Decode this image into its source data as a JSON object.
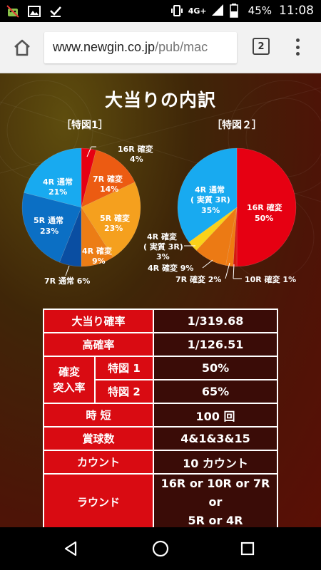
{
  "status": {
    "network": "4G+",
    "battery": "45%",
    "time": "11:08"
  },
  "browser": {
    "url_domain": "www.newgin.co.jp",
    "url_path": "/pub/mac",
    "tab_count": "2"
  },
  "page": {
    "title": "大当りの内訳",
    "left_heading": "［特図1］",
    "right_heading": "［特図２］"
  },
  "charts": {
    "left_labels": {
      "r16_name": "16R 確変",
      "r16_pct": "4%",
      "r7k_name": "7R 確変",
      "r7k_pct": "14%",
      "r5k_name": "5R 確変",
      "r5k_pct": "23%",
      "r4k_name": "4R 確変",
      "r4k_pct": "9%",
      "r7t": "7R 通常 6%",
      "r5t_name": "5R 通常",
      "r5t_pct": "23%",
      "r4t_name": "4R 通常",
      "r4t_pct": "21%"
    },
    "right_labels": {
      "r16_name": "16R 確変",
      "r16_pct": "50%",
      "r10": "10R 確変 1%",
      "r7": "7R 確変 2%",
      "r4k": "4R 確変 9%",
      "r4j_l1": "4R 確変",
      "r4j_l2": "( 実質 3R)",
      "r4j_l3": "3%",
      "r4t_l1": "4R 通常",
      "r4t_l2": "( 実質 3R)",
      "r4t_l3": "35%"
    }
  },
  "chart_data": [
    {
      "type": "pie",
      "title": "［特図1］",
      "labels": [
        "16R 確変",
        "7R 確変",
        "5R 確変",
        "4R 確変",
        "7R 通常",
        "5R 通常",
        "4R 通常"
      ],
      "values": [
        4,
        14,
        23,
        9,
        6,
        23,
        21
      ],
      "colors": [
        "#e60012",
        "#ec5b12",
        "#f5a01e",
        "#ec7d15",
        "#0a4ea2",
        "#0b6fc4",
        "#18aaf0"
      ]
    },
    {
      "type": "pie",
      "title": "［特図２］",
      "labels": [
        "16R 確変",
        "10R 確変",
        "7R 確変",
        "4R 確変",
        "4R 確変 (実質 3R)",
        "4R 通常 (実質 3R)"
      ],
      "values": [
        50,
        1,
        2,
        9,
        3,
        35
      ],
      "colors": [
        "#e60012",
        "#d41b10",
        "#f07b12",
        "#ec7a14",
        "#fbd11a",
        "#18aaf0"
      ]
    }
  ],
  "table": {
    "row1_label": "大当り確率",
    "row1_value": "1/319.68",
    "row2_label": "高確率",
    "row2_value": "1/126.51",
    "row3_group": "確変\n突入率",
    "row3_sub1": "特図 1",
    "row3_val1": "50%",
    "row3_sub2": "特図 2",
    "row3_val2": "65%",
    "row4_label": "時 短",
    "row4_value": "100 回",
    "row5_label": "賞球数",
    "row5_value": "4&1&3&15",
    "row6_label": "カウント",
    "row6_value": "10 カウント",
    "row7_label": "ラウンド",
    "row7_value": "16R or 10R or 7R or\n5R or 4R"
  }
}
